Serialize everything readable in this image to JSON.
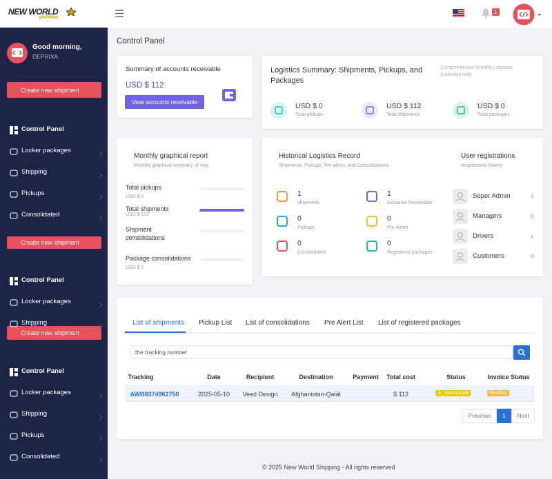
{
  "topbar": {
    "logo": "NEW WORLD",
    "logo_sub": "SHIPPING",
    "notification_count": 1
  },
  "sidebar": {
    "greeting": "Good morning,",
    "username": "DEPRIXA",
    "buttons": [
      "Create new shipment",
      "Create new shipment",
      "Create new shipment"
    ],
    "menu": [
      "Control Panel",
      "Locker packages",
      "Shipping",
      "Pickups",
      "Consolidated",
      "Control Panel",
      "Locker packages",
      "Shipping",
      "Control Panel",
      "Locker packages",
      "Shipping",
      "Pickups",
      "Consolidated"
    ]
  },
  "page_title": "Control Panel",
  "receivable": {
    "title": "Summary of accounts receivable",
    "amount": "USD $ 112",
    "button": "View accounts receivable"
  },
  "logistics": {
    "title": "Logistics Summary: Shipments, Pickups, and Packages",
    "subtitle": "Comprehensive Monthly Logistics Summary may",
    "items": [
      {
        "value": "USD $ 0",
        "label": "Total pickups"
      },
      {
        "value": "USD $ 112",
        "label": "Total shipments"
      },
      {
        "value": "USD $ 0",
        "label": "Total packages"
      }
    ]
  },
  "monthly": {
    "title": "Monthly graphical report",
    "subtitle": "Monthly graphical summary of may",
    "items": [
      {
        "label": "Total pickups",
        "value": "USD $ 0"
      },
      {
        "label": "Total shipments",
        "value": "USD $ 112"
      },
      {
        "label": "Shipment consolidations",
        "value": "USD $ 0"
      },
      {
        "label": "Package consolidations",
        "value": "USD $ 0"
      }
    ]
  },
  "history": {
    "title": "Historical Logistics Record",
    "subtitle": "Shipments, Pickups, Pre-alerts, and Consolidations",
    "items": [
      {
        "count": 1,
        "label": "shipments"
      },
      {
        "count": 1,
        "label": "Accounts Receivable"
      },
      {
        "count": 0,
        "label": "Pickups"
      },
      {
        "count": 0,
        "label": "Pre Alerts"
      },
      {
        "count": 0,
        "label": "Consolidated"
      },
      {
        "count": 0,
        "label": "Registered packages"
      }
    ]
  },
  "registrations": {
    "title": "User registrations",
    "subtitle": "Registration history",
    "items": [
      {
        "label": "Seper Admin",
        "count": 1
      },
      {
        "label": "Managers",
        "count": 0
      },
      {
        "label": "Drivers",
        "count": 1
      },
      {
        "label": "Customers",
        "count": 3
      }
    ]
  },
  "tabs": [
    "List of shipments",
    "Pickup List",
    "List of consolidations",
    "Pre Alert List",
    "List of registered packages"
  ],
  "search_placeholder": "the tracking number",
  "table": {
    "headers": [
      "Tracking",
      "Date",
      "Recipient",
      "Destination",
      "Payment",
      "Total cost",
      "Status",
      "Invoice Status"
    ],
    "rows": [
      [
        "AWB8374962750",
        "2025-05-10",
        "Veed Design",
        "Afghanistan-Qalāt",
        null,
        "$ 112",
        "In_Warehouse",
        "Pending"
      ]
    ]
  },
  "pagination": {
    "previous": "Previous",
    "page": 1,
    "next": "Next"
  },
  "footer": "© 2025 New World Shipping - All rights reserved"
}
